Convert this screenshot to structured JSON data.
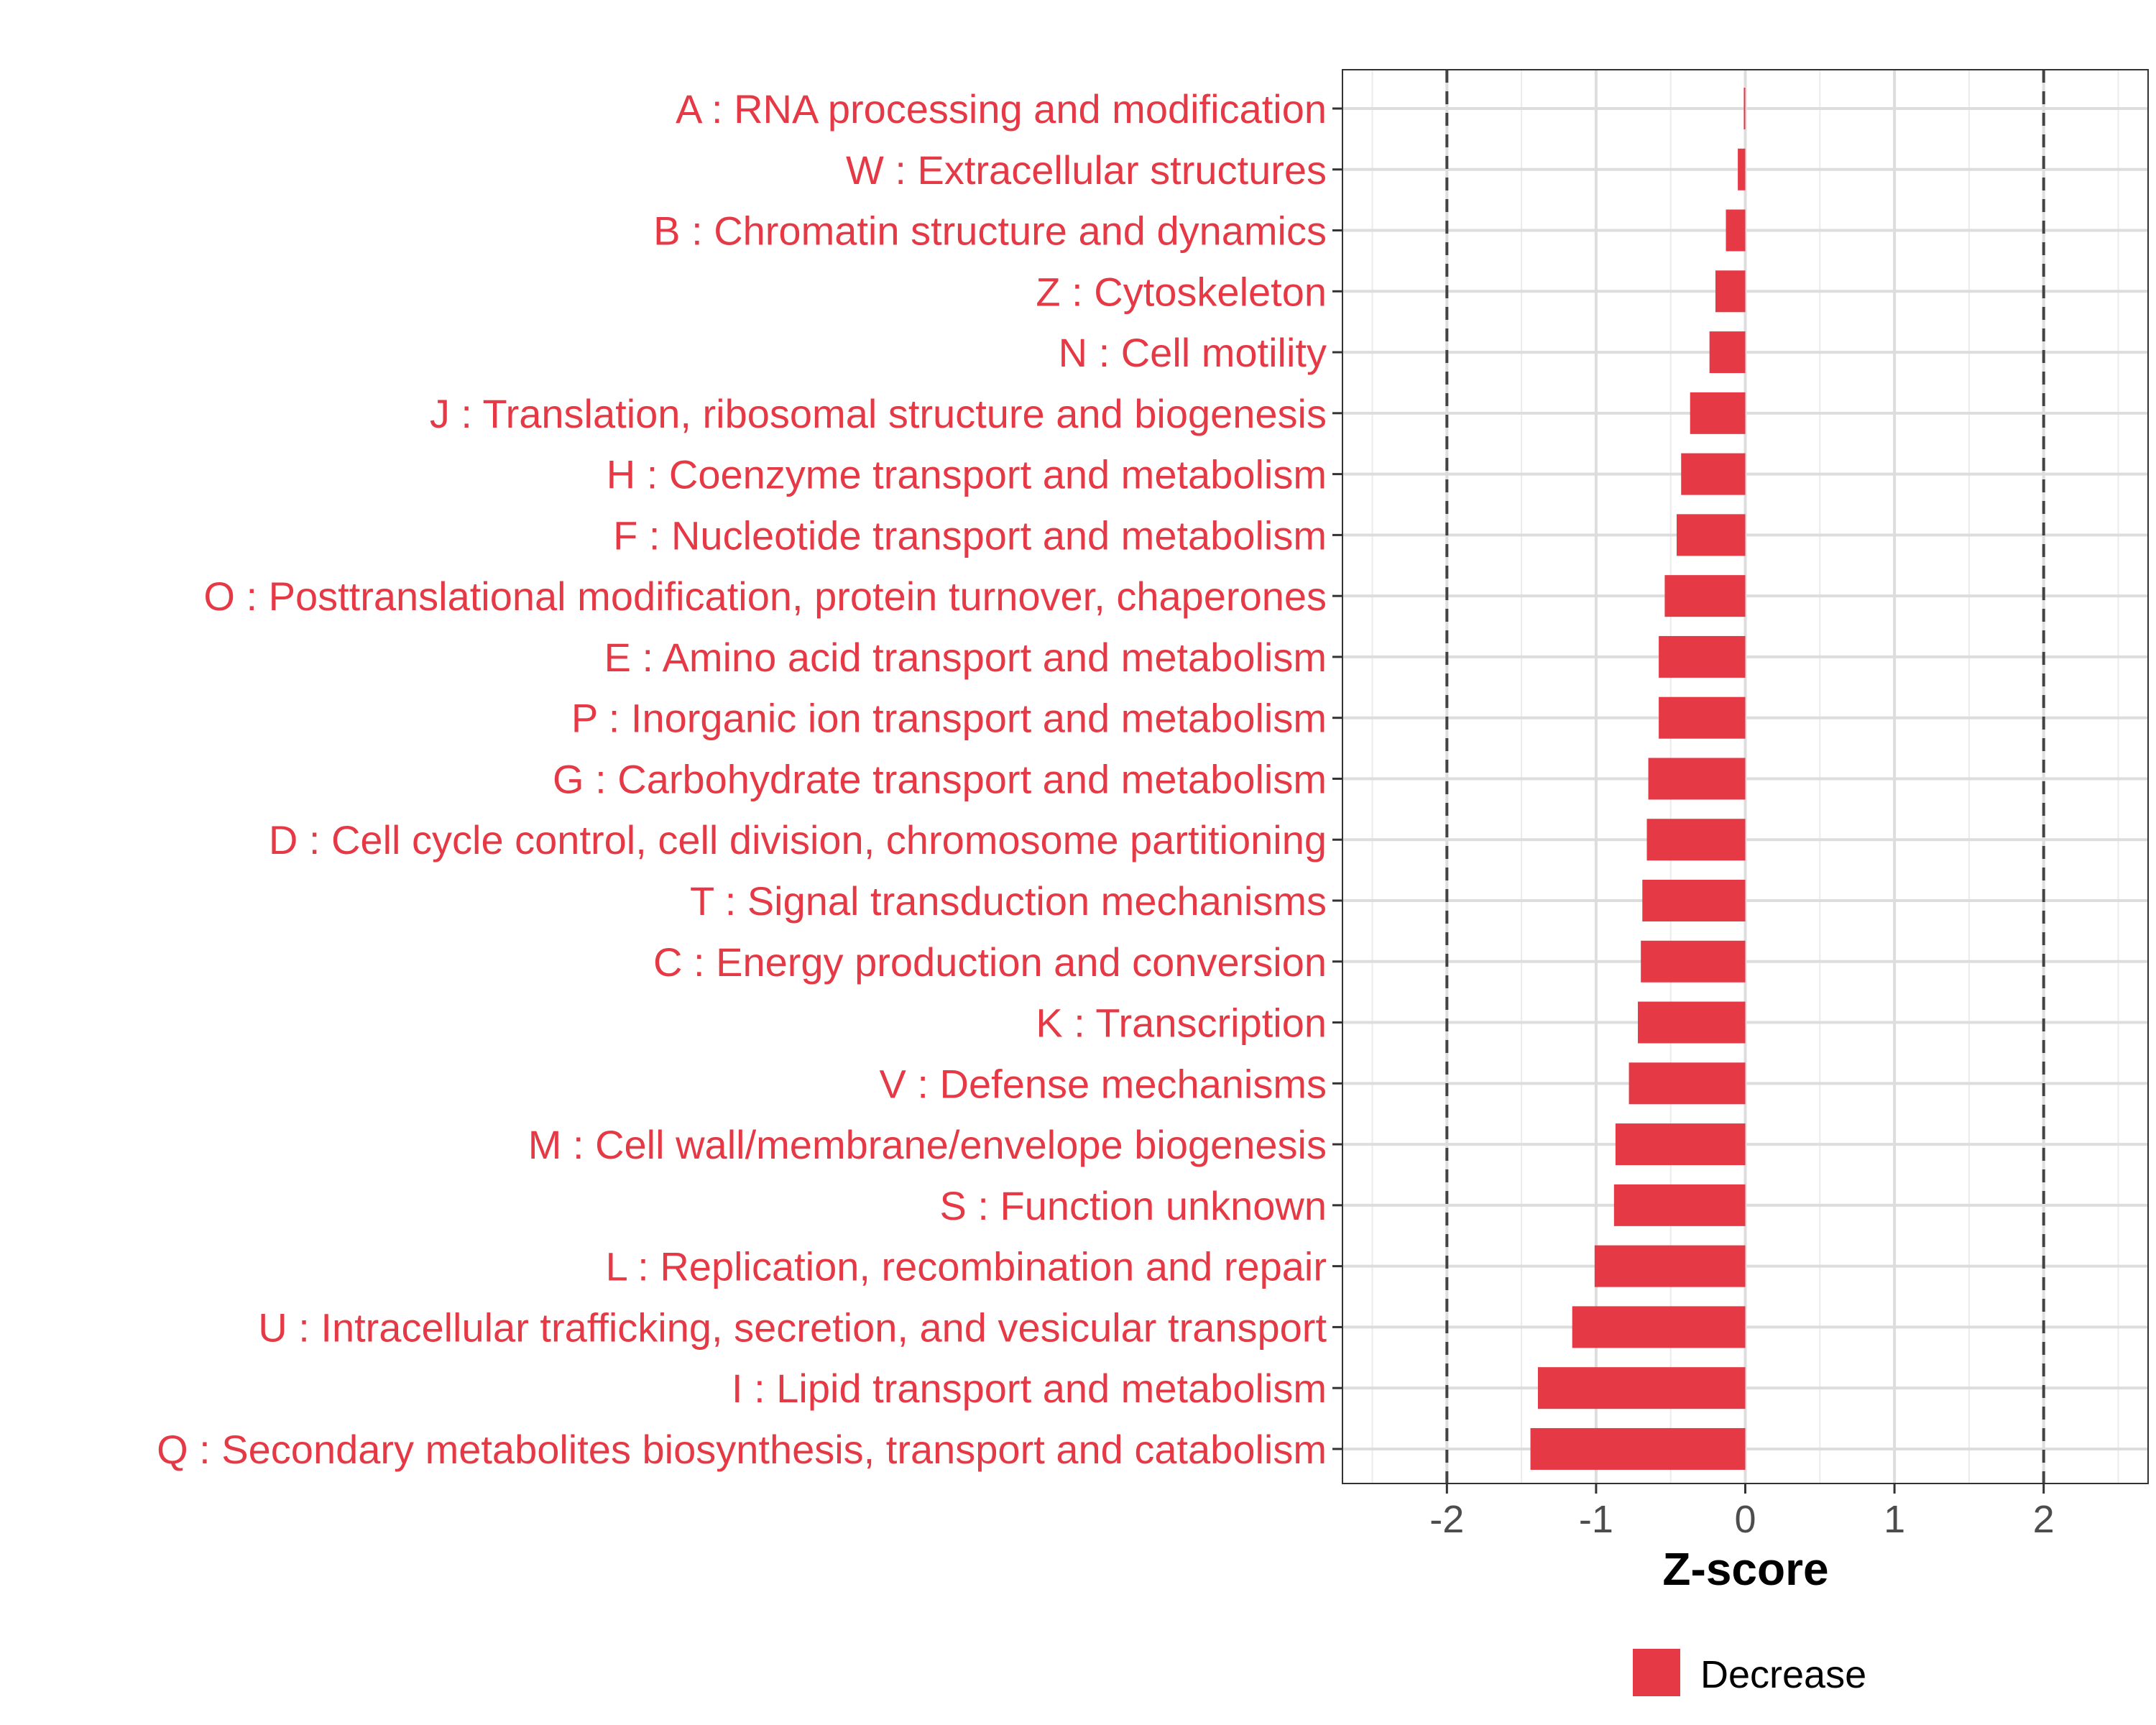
{
  "chart_data": {
    "type": "bar",
    "orientation": "horizontal",
    "xlabel": "Z-score",
    "xlim": [
      -2.7,
      2.7
    ],
    "xticks": [
      "-2",
      "-1",
      "0",
      "1",
      "2"
    ],
    "threshold_lines": [
      -2,
      2
    ],
    "grid": true,
    "legend": {
      "position": "bottom",
      "entries": [
        {
          "label": "Decrease",
          "color": "#E63946"
        }
      ]
    },
    "colors": {
      "decrease": "#E63946",
      "label_text": "#E63946",
      "grid": "#DDDDDD",
      "axis_text": "#4D4D4D"
    },
    "categories": [
      "A : RNA processing and modification",
      "W : Extracellular structures",
      "B : Chromatin structure and dynamics",
      "Z : Cytoskeleton",
      "N : Cell motility",
      "J : Translation, ribosomal structure and biogenesis",
      "H : Coenzyme transport and metabolism",
      "F : Nucleotide transport and metabolism",
      "O : Posttranslational modification, protein turnover, chaperones",
      "E : Amino acid transport and metabolism",
      "P : Inorganic ion transport and metabolism",
      "G : Carbohydrate transport and metabolism",
      "D : Cell cycle control, cell division, chromosome partitioning",
      "T : Signal transduction mechanisms",
      "C : Energy production and conversion",
      "K : Transcription",
      "V : Defense mechanisms",
      "M : Cell wall/membrane/envelope biogenesis",
      "S : Function unknown",
      "L : Replication, recombination and repair",
      "U : Intracellular trafficking, secretion, and vesicular transport",
      "I : Lipid transport and metabolism",
      "Q : Secondary metabolites biosynthesis, transport and catabolism"
    ],
    "values": [
      -0.01,
      -0.05,
      -0.13,
      -0.2,
      -0.24,
      -0.37,
      -0.43,
      -0.46,
      -0.54,
      -0.58,
      -0.58,
      -0.65,
      -0.66,
      -0.69,
      -0.7,
      -0.72,
      -0.78,
      -0.87,
      -0.88,
      -1.01,
      -1.16,
      -1.39,
      -1.44
    ]
  }
}
